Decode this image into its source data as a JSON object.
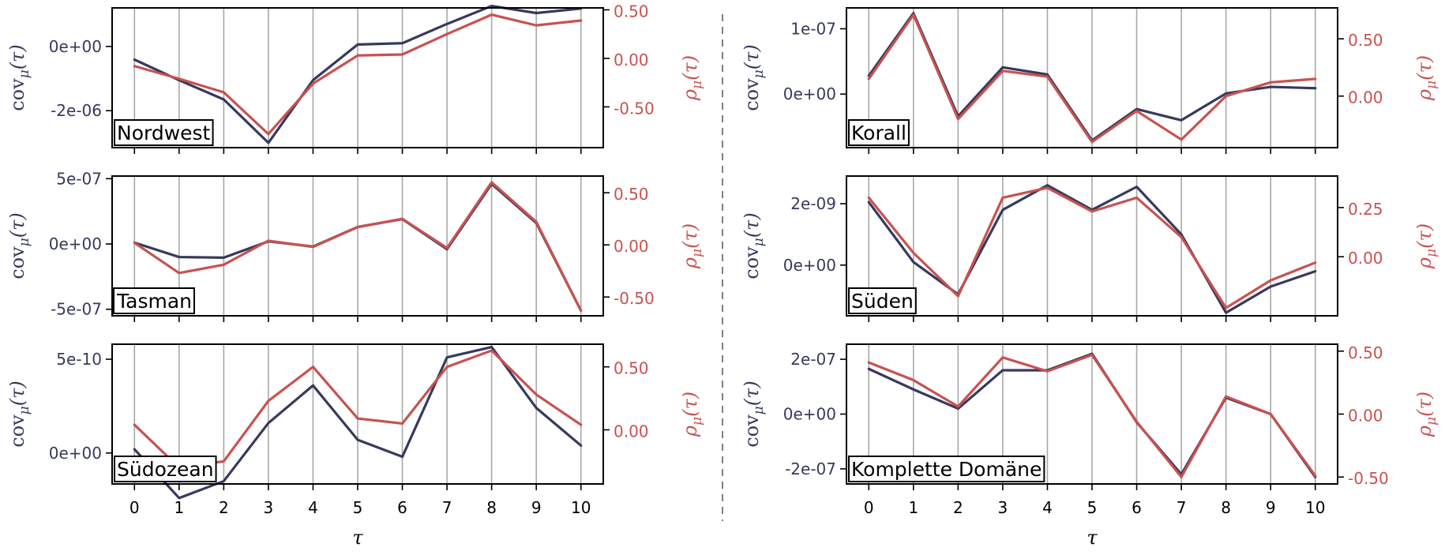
{
  "colors": {
    "cov": "#363a5c",
    "rho": "#c85250",
    "grid": "#a8a8a8",
    "divider": "#808080"
  },
  "chart_data": [
    {
      "type": "line",
      "title": "Nordwest",
      "xlabel": "",
      "ylabel_left": "cov_μ(τ)",
      "ylabel_right": "ρ_μ(τ)",
      "x": [
        0,
        1,
        2,
        3,
        4,
        5,
        6,
        7,
        8,
        9,
        10
      ],
      "ylim_left": [
        -3.15e-06,
        1.2e-06
      ],
      "ylim_right": [
        -0.92,
        0.52
      ],
      "left_ticks": [
        {
          "v": 0,
          "label": "0e+00"
        },
        {
          "v": -2e-06,
          "label": "-2e-06"
        }
      ],
      "right_ticks": [
        {
          "v": 0.5,
          "label": "0.50"
        },
        {
          "v": 0,
          "label": "0.00"
        },
        {
          "v": -0.5,
          "label": "-0.50"
        }
      ],
      "series": [
        {
          "values": [
            -4.1e-07,
            -1.05e-06,
            -1.65e-06,
            -3e-06,
            -1.05e-06,
            6e-08,
            1e-07,
            7e-07,
            1.26e-06,
            1.04e-06,
            1.18e-06
          ],
          "axis": "left"
        },
        {
          "values": [
            -0.08,
            -0.21,
            -0.35,
            -0.78,
            -0.26,
            0.03,
            0.04,
            0.25,
            0.45,
            0.34,
            0.39
          ],
          "axis": "right"
        }
      ]
    },
    {
      "type": "line",
      "title": "Korall",
      "xlabel": "",
      "ylabel_left": "cov_μ(τ)",
      "ylabel_right": "ρ_μ(τ)",
      "x": [
        0,
        1,
        2,
        3,
        4,
        5,
        6,
        7,
        8,
        9,
        10
      ],
      "ylim_left": [
        -8.2e-08,
        1.32e-07
      ],
      "ylim_right": [
        -0.45,
        0.77
      ],
      "left_ticks": [
        {
          "v": 1e-07,
          "label": "1e-07"
        },
        {
          "v": 0,
          "label": "0e+00"
        }
      ],
      "right_ticks": [
        {
          "v": 0.5,
          "label": "0.50"
        },
        {
          "v": 0,
          "label": "0.00"
        }
      ],
      "series": [
        {
          "values": [
            2.8e-08,
            1.24e-07,
            -3.4e-08,
            4.1e-08,
            3e-08,
            -7.1e-08,
            -2.3e-08,
            -4e-08,
            1e-09,
            1.1e-08,
            9e-09
          ],
          "axis": "left"
        },
        {
          "values": [
            0.15,
            0.71,
            -0.2,
            0.22,
            0.17,
            -0.4,
            -0.13,
            -0.38,
            0.0,
            0.12,
            0.15
          ],
          "axis": "right"
        }
      ]
    },
    {
      "type": "line",
      "title": "Tasman",
      "xlabel": "",
      "ylabel_left": "cov_μ(τ)",
      "ylabel_right": "ρ_μ(τ)",
      "x": [
        0,
        1,
        2,
        3,
        4,
        5,
        6,
        7,
        8,
        9,
        10
      ],
      "ylim_left": [
        -5.5e-07,
        5.2e-07
      ],
      "ylim_right": [
        -0.68,
        0.66
      ],
      "left_ticks": [
        {
          "v": 5e-07,
          "label": "5e-07"
        },
        {
          "v": 0,
          "label": "0e+00"
        },
        {
          "v": -5e-07,
          "label": "-5e-07"
        }
      ],
      "right_ticks": [
        {
          "v": 0.5,
          "label": "0.50"
        },
        {
          "v": 0,
          "label": "0.00"
        },
        {
          "v": -0.5,
          "label": "-0.50"
        }
      ],
      "series": [
        {
          "values": [
            1e-08,
            -1e-07,
            -1.05e-07,
            2e-08,
            -2e-08,
            1.3e-07,
            1.9e-07,
            -4e-08,
            4.6e-07,
            1.6e-07,
            -5.1e-07
          ],
          "axis": "left"
        },
        {
          "values": [
            0.02,
            -0.27,
            -0.19,
            0.04,
            -0.02,
            0.17,
            0.25,
            -0.03,
            0.6,
            0.22,
            -0.63
          ],
          "axis": "right"
        }
      ]
    },
    {
      "type": "line",
      "title": "Süden",
      "xlabel": "",
      "ylabel_left": "cov_μ(τ)",
      "ylabel_right": "ρ_μ(τ)",
      "x": [
        0,
        1,
        2,
        3,
        4,
        5,
        6,
        7,
        8,
        9,
        10
      ],
      "ylim_left": [
        -1.65e-09,
        2.9e-09
      ],
      "ylim_right": [
        -0.3,
        0.41
      ],
      "left_ticks": [
        {
          "v": 2e-09,
          "label": "2e-09"
        },
        {
          "v": 0,
          "label": "0e+00"
        }
      ],
      "right_ticks": [
        {
          "v": 0.25,
          "label": "0.25"
        },
        {
          "v": 0,
          "label": "0.00"
        }
      ],
      "series": [
        {
          "values": [
            2.05e-09,
            1e-10,
            -9.5e-10,
            1.8e-09,
            2.6e-09,
            1.8e-09,
            2.55e-09,
            1e-09,
            -1.55e-09,
            -7e-10,
            -2e-10
          ],
          "axis": "left"
        },
        {
          "values": [
            0.3,
            0.02,
            -0.2,
            0.3,
            0.35,
            0.23,
            0.3,
            0.1,
            -0.26,
            -0.12,
            -0.03
          ],
          "axis": "right"
        }
      ]
    },
    {
      "type": "line",
      "title": "Südozean",
      "xlabel": "τ",
      "ylabel_left": "cov_μ(τ)",
      "ylabel_right": "ρ_μ(τ)",
      "x": [
        0,
        1,
        2,
        3,
        4,
        5,
        6,
        7,
        8,
        9,
        10
      ],
      "ylim_left": [
        -1.65e-10,
        5.8e-10
      ],
      "ylim_right": [
        -0.43,
        0.68
      ],
      "left_ticks": [
        {
          "v": 5e-10,
          "label": "5e-10"
        },
        {
          "v": 0,
          "label": "0e+00"
        }
      ],
      "right_ticks": [
        {
          "v": 0.5,
          "label": "0.50"
        },
        {
          "v": 0,
          "label": "0.00"
        }
      ],
      "series": [
        {
          "values": [
            2e-11,
            -2.4e-10,
            -1.5e-10,
            1.6e-10,
            3.6e-10,
            7e-11,
            -2e-11,
            5.1e-10,
            5.65e-10,
            2.4e-10,
            4e-11
          ],
          "axis": "left"
        },
        {
          "values": [
            0.04,
            -0.3,
            -0.25,
            0.23,
            0.5,
            0.09,
            0.05,
            0.5,
            0.63,
            0.28,
            0.04
          ],
          "axis": "right"
        }
      ]
    },
    {
      "type": "line",
      "title": "Komplette Domäne",
      "xlabel": "τ",
      "ylabel_left": "cov_μ(τ)",
      "ylabel_right": "ρ_μ(τ)",
      "x": [
        0,
        1,
        2,
        3,
        4,
        5,
        6,
        7,
        8,
        9,
        10
      ],
      "ylim_left": [
        -2.55e-07,
        2.55e-07
      ],
      "ylim_right": [
        -0.555,
        0.555
      ],
      "left_ticks": [
        {
          "v": 2e-07,
          "label": "2e-07"
        },
        {
          "v": 0,
          "label": "0e+00"
        },
        {
          "v": -2e-07,
          "label": "-2e-07"
        }
      ],
      "right_ticks": [
        {
          "v": 0.5,
          "label": "0.50"
        },
        {
          "v": 0,
          "label": "0.00"
        },
        {
          "v": -0.5,
          "label": "-0.50"
        }
      ],
      "series": [
        {
          "values": [
            1.65e-07,
            9e-08,
            2e-08,
            1.6e-07,
            1.6e-07,
            2.2e-07,
            -3e-08,
            -2.2e-07,
            6e-08,
            0.0,
            -2.3e-07
          ],
          "axis": "left"
        },
        {
          "values": [
            0.41,
            0.27,
            0.06,
            0.45,
            0.34,
            0.47,
            -0.06,
            -0.5,
            0.14,
            0.0,
            -0.49
          ],
          "axis": "right"
        }
      ]
    }
  ]
}
